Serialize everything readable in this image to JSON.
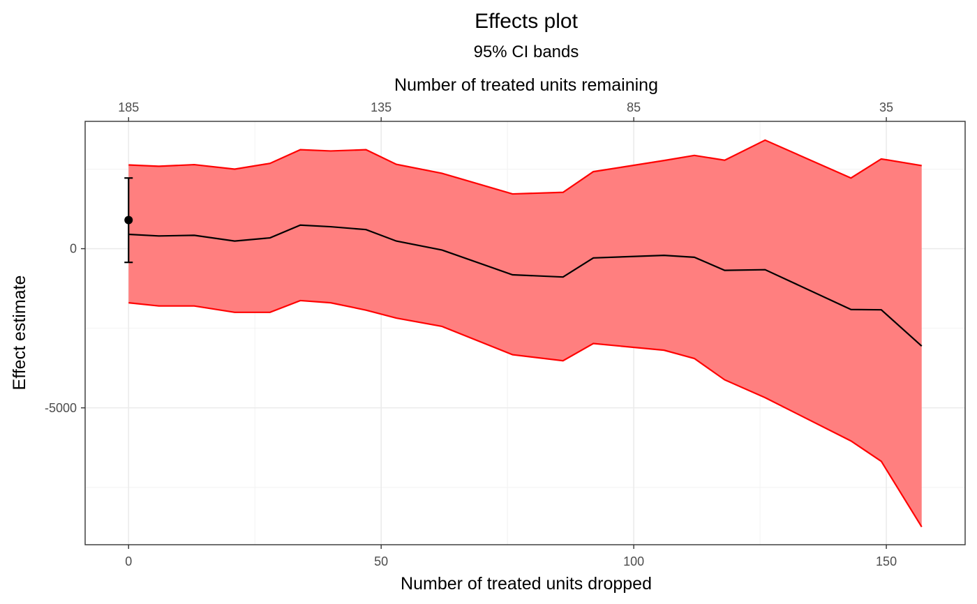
{
  "chart_data": {
    "type": "line",
    "title": "Effects plot",
    "subtitle": "95% CI bands",
    "xlabel": "Number of treated units dropped",
    "ylabel": "Effect estimate",
    "x2label": "Number of treated units remaining",
    "xlim": [
      -8.6,
      165.6
    ],
    "ylim": [
      -9300,
      4000
    ],
    "x_ticks": [
      0,
      50,
      100,
      150
    ],
    "x_tick_labels": [
      "0",
      "50",
      "100",
      "150"
    ],
    "x2_ticks": [
      0,
      50,
      100,
      150
    ],
    "x2_tick_labels": [
      "185",
      "135",
      "85",
      "35"
    ],
    "y_ticks": [
      0,
      -5000
    ],
    "y_tick_labels": [
      "0",
      "-5000"
    ],
    "grid": true,
    "colors": {
      "band_fill": "#ff7f7f",
      "band_line": "#ff0000",
      "estimate_line": "#000000",
      "point": "#000000"
    },
    "x": [
      0,
      6,
      13,
      21,
      28,
      34,
      40,
      47,
      53,
      62,
      76,
      86,
      92,
      106,
      112,
      118,
      126,
      143,
      149,
      157
    ],
    "series": [
      {
        "role": "estimate",
        "values": [
          450,
          400,
          420,
          240,
          340,
          740,
          690,
          600,
          240,
          -40,
          -820,
          -890,
          -290,
          -210,
          -270,
          -680,
          -660,
          -1910,
          -1920,
          -3060
        ]
      },
      {
        "role": "upper",
        "values": [
          2630,
          2590,
          2640,
          2500,
          2680,
          3110,
          3070,
          3110,
          2650,
          2370,
          1720,
          1770,
          2420,
          2770,
          2930,
          2780,
          3410,
          2220,
          2820,
          2610
        ]
      },
      {
        "role": "lower",
        "values": [
          -1700,
          -1800,
          -1800,
          -2000,
          -2000,
          -1630,
          -1700,
          -1930,
          -2180,
          -2440,
          -3330,
          -3520,
          -2980,
          -3190,
          -3450,
          -4120,
          -4680,
          -6040,
          -6680,
          -8740
        ]
      }
    ],
    "baseline_point": {
      "x": 0,
      "y": 900,
      "ymin": -430,
      "ymax": 2220
    }
  }
}
